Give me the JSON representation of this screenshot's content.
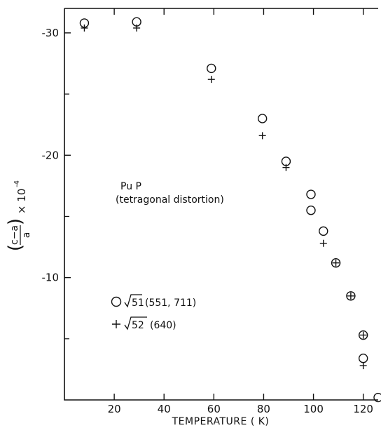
{
  "chart_data": {
    "type": "scatter",
    "title": "",
    "xlabel": "TEMPERATURE ( K)",
    "ylabel": {
      "numerator": "c−a",
      "denominator": "a",
      "multiplier": "× 10",
      "exponent": "-4"
    },
    "xlim": [
      0,
      126
    ],
    "ylim": [
      -32,
      0
    ],
    "x_ticks": [
      20,
      40,
      60,
      80,
      100,
      120
    ],
    "x_tick_labels": [
      "20",
      "40",
      "60",
      "80",
      "100",
      "120"
    ],
    "y_ticks": [
      -30,
      -20,
      -10
    ],
    "y_tick_labels": [
      "-30",
      "-20",
      "-10"
    ],
    "grid": false,
    "annotation": {
      "line1": "Pu P",
      "line2": "(tetragonal distortion)"
    },
    "legend": {
      "placement": "lower-left",
      "entries": [
        {
          "symbol": "circle",
          "sqrt_label": "51",
          "rest_label": "(551, 711)"
        },
        {
          "symbol": "plus",
          "sqrt_label": "52",
          "rest_label": "(640)"
        }
      ]
    },
    "series": [
      {
        "marker": "circle",
        "x": [
          8,
          29,
          59,
          79.5,
          89,
          99,
          99,
          104,
          109,
          115,
          120,
          120,
          126
        ],
        "y": [
          -30.8,
          -30.9,
          -27.1,
          -23.0,
          -19.5,
          -16.8,
          -15.5,
          -13.8,
          -11.2,
          -8.5,
          -5.3,
          -3.4,
          -0.2
        ]
      },
      {
        "marker": "plus",
        "x": [
          8,
          29,
          59,
          79.5,
          89,
          104,
          109,
          115,
          120,
          120
        ],
        "y": [
          -30.4,
          -30.4,
          -26.2,
          -21.6,
          -19.0,
          -12.8,
          -11.2,
          -8.5,
          -5.3,
          -2.8
        ]
      }
    ]
  }
}
